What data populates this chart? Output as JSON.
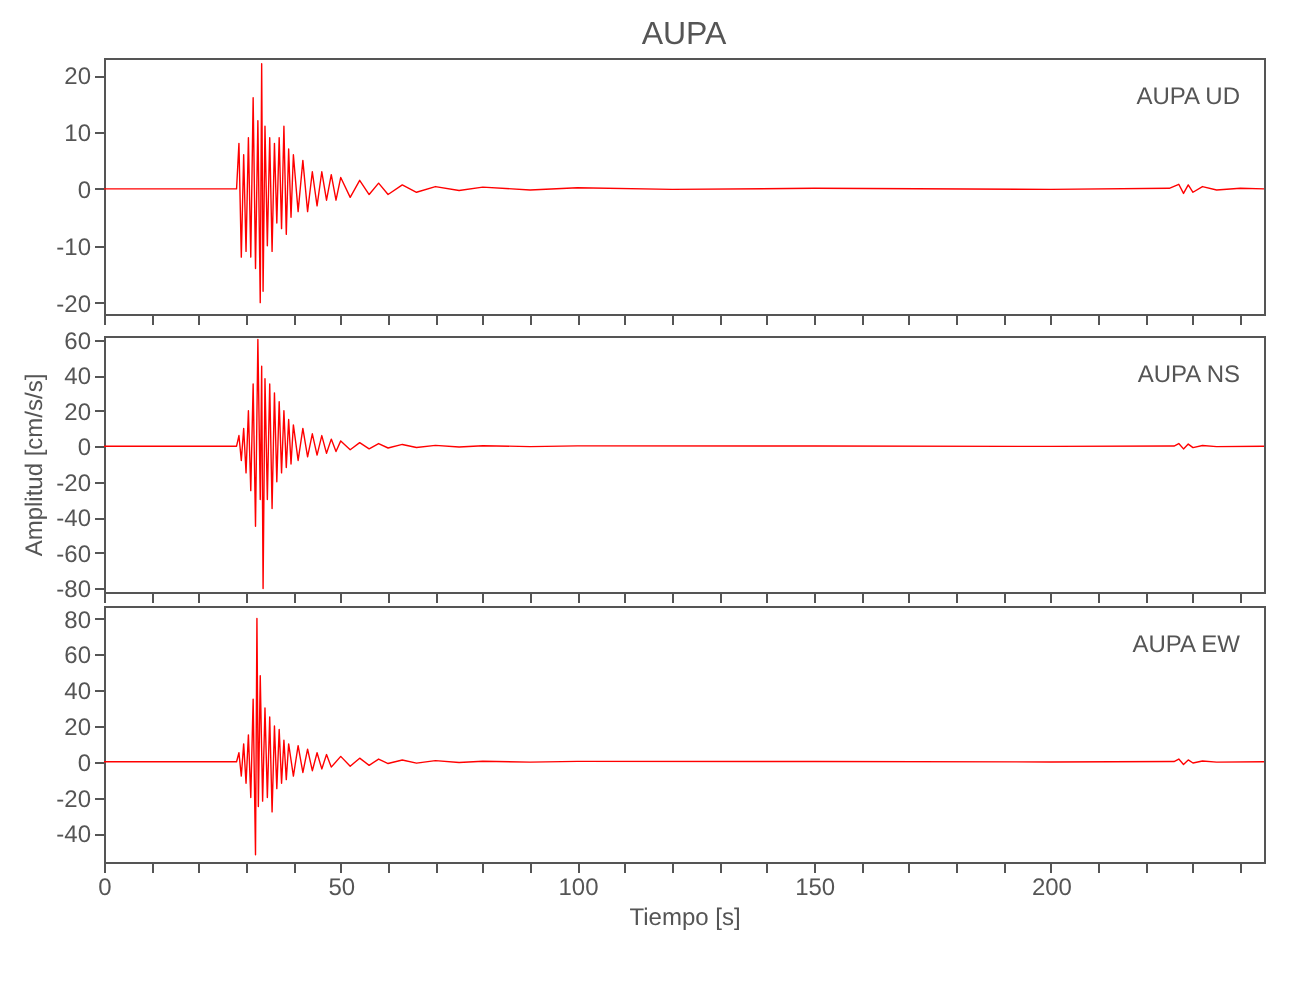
{
  "chart_data": [
    {
      "type": "line",
      "title": "AUPA",
      "annotations": [
        "AUPA  UD"
      ],
      "xlim": [
        0,
        245
      ],
      "ylim": [
        -22,
        23
      ],
      "xticks": [
        0,
        {
          "value": 10,
          "label": null
        },
        {
          "value": 20,
          "label": null
        },
        {
          "value": 30,
          "label": null
        },
        {
          "value": 40,
          "label": null
        },
        50,
        {
          "value": 60,
          "label": null
        },
        {
          "value": 70,
          "label": null
        },
        {
          "value": 80,
          "label": null
        },
        {
          "value": 90,
          "label": null
        },
        100,
        {
          "value": 110,
          "label": null
        },
        {
          "value": 120,
          "label": null
        },
        {
          "value": 130,
          "label": null
        },
        {
          "value": 140,
          "label": null
        },
        150,
        {
          "value": 160,
          "label": null
        },
        {
          "value": 170,
          "label": null
        },
        {
          "value": 180,
          "label": null
        },
        {
          "value": 190,
          "label": null
        },
        200,
        {
          "value": 210,
          "label": null
        },
        {
          "value": 220,
          "label": null
        },
        {
          "value": 230,
          "label": null
        },
        {
          "value": 240,
          "label": null
        }
      ],
      "yticks": [
        -20,
        -10,
        0,
        10,
        20
      ],
      "tick_labels": "y",
      "series": [
        {
          "color": "#ff0000",
          "x": [
            0,
            28,
            28.5,
            29,
            29.5,
            30,
            30.5,
            31,
            31.5,
            32,
            32.5,
            33,
            33.3,
            33.6,
            34,
            34.5,
            35,
            35.5,
            36,
            36.5,
            37,
            37.5,
            38,
            38.5,
            39,
            39.5,
            40,
            41,
            42,
            43,
            44,
            45,
            46,
            47,
            48,
            49,
            50,
            52,
            54,
            56,
            58,
            60,
            63,
            66,
            70,
            75,
            80,
            90,
            100,
            120,
            150,
            200,
            225,
            227,
            228,
            229,
            230,
            232,
            235,
            240,
            245
          ],
          "values": [
            0,
            0,
            8,
            -12,
            6,
            -11,
            9,
            -12,
            16,
            -14,
            12,
            -20,
            22,
            -18,
            11,
            -10,
            9,
            -11,
            8,
            -6,
            9,
            -7,
            11,
            -8,
            7,
            -5,
            6,
            -4,
            5,
            -4,
            3,
            -3,
            3,
            -2,
            2.5,
            -2,
            2,
            -1.5,
            1.5,
            -1,
            1,
            -1,
            0.7,
            -0.6,
            0.4,
            -0.3,
            0.3,
            -0.2,
            0.2,
            -0.1,
            0.1,
            -0.1,
            0.1,
            0.8,
            -0.8,
            0.7,
            -0.6,
            0.4,
            -0.2,
            0.1,
            0
          ]
        }
      ]
    },
    {
      "type": "line",
      "ylabel": "Amplitud [cm/s/s]",
      "annotations": [
        "AUPA  NS"
      ],
      "xlim": [
        0,
        245
      ],
      "ylim": [
        -82,
        62
      ],
      "xticks": [
        0,
        {
          "value": 10,
          "label": null
        },
        {
          "value": 20,
          "label": null
        },
        {
          "value": 30,
          "label": null
        },
        {
          "value": 40,
          "label": null
        },
        50,
        {
          "value": 60,
          "label": null
        },
        {
          "value": 70,
          "label": null
        },
        {
          "value": 80,
          "label": null
        },
        {
          "value": 90,
          "label": null
        },
        100,
        {
          "value": 110,
          "label": null
        },
        {
          "value": 120,
          "label": null
        },
        {
          "value": 130,
          "label": null
        },
        {
          "value": 140,
          "label": null
        },
        150,
        {
          "value": 160,
          "label": null
        },
        {
          "value": 170,
          "label": null
        },
        {
          "value": 180,
          "label": null
        },
        {
          "value": 190,
          "label": null
        },
        200,
        {
          "value": 210,
          "label": null
        },
        {
          "value": 220,
          "label": null
        },
        {
          "value": 230,
          "label": null
        },
        {
          "value": 240,
          "label": null
        }
      ],
      "yticks": [
        -80,
        -60,
        -40,
        -20,
        0,
        20,
        40,
        60
      ],
      "tick_labels": "y",
      "series": [
        {
          "color": "#ff0000",
          "x": [
            0,
            28,
            28.5,
            29,
            29.5,
            30,
            30.5,
            31,
            31.5,
            32,
            32.5,
            33,
            33.3,
            33.6,
            34,
            34.5,
            35,
            35.5,
            36,
            36.5,
            37,
            37.5,
            38,
            38.5,
            39,
            39.5,
            40,
            41,
            42,
            43,
            44,
            45,
            46,
            47,
            48,
            49,
            50,
            52,
            54,
            56,
            58,
            60,
            63,
            66,
            70,
            75,
            80,
            90,
            100,
            150,
            200,
            226,
            227,
            228,
            229,
            230,
            232,
            235,
            245
          ],
          "values": [
            0,
            0,
            6,
            -8,
            10,
            -15,
            20,
            -25,
            35,
            -45,
            60,
            -30,
            45,
            -80,
            38,
            -30,
            35,
            -35,
            30,
            -20,
            25,
            -15,
            20,
            -12,
            15,
            -10,
            12,
            -8,
            10,
            -6,
            7,
            -5,
            6,
            -4,
            4,
            -3,
            3,
            -2,
            2,
            -1.5,
            1.5,
            -1,
            1,
            -0.7,
            0.5,
            -0.4,
            0.3,
            -0.2,
            0.2,
            0.1,
            -0.1,
            0.1,
            1.5,
            -1.5,
            1.2,
            -0.8,
            0.4,
            -0.2,
            0
          ]
        }
      ]
    },
    {
      "type": "line",
      "xlabel": "Tiempo [s]",
      "annotations": [
        "AUPA  EW"
      ],
      "xlim": [
        0,
        245
      ],
      "ylim": [
        -56,
        87
      ],
      "xticks": [
        0,
        {
          "value": 10,
          "label": null
        },
        {
          "value": 20,
          "label": null
        },
        {
          "value": 30,
          "label": null
        },
        {
          "value": 40,
          "label": null
        },
        50,
        {
          "value": 60,
          "label": null
        },
        {
          "value": 70,
          "label": null
        },
        {
          "value": 80,
          "label": null
        },
        {
          "value": 90,
          "label": null
        },
        100,
        {
          "value": 110,
          "label": null
        },
        {
          "value": 120,
          "label": null
        },
        {
          "value": 130,
          "label": null
        },
        {
          "value": 140,
          "label": null
        },
        150,
        {
          "value": 160,
          "label": null
        },
        {
          "value": 170,
          "label": null
        },
        {
          "value": 180,
          "label": null
        },
        {
          "value": 190,
          "label": null
        },
        200,
        {
          "value": 210,
          "label": null
        },
        {
          "value": 220,
          "label": null
        },
        {
          "value": 230,
          "label": null
        },
        {
          "value": 240,
          "label": null
        }
      ],
      "yticks": [
        -40,
        -20,
        0,
        20,
        40,
        60,
        80
      ],
      "series": [
        {
          "color": "#ff0000",
          "x": [
            0,
            28,
            28.5,
            29,
            29.5,
            30,
            30.5,
            31,
            31.5,
            32,
            32.3,
            32.6,
            33,
            33.5,
            34,
            34.5,
            35,
            35.5,
            36,
            36.5,
            37,
            37.5,
            38,
            38.5,
            39,
            40,
            41,
            42,
            43,
            44,
            45,
            46,
            47,
            48,
            50,
            52,
            54,
            56,
            58,
            60,
            63,
            66,
            70,
            75,
            80,
            90,
            100,
            150,
            200,
            226,
            227,
            228,
            229,
            230,
            232,
            235,
            245
          ],
          "values": [
            0,
            0,
            5,
            -8,
            10,
            -12,
            15,
            -20,
            35,
            -52,
            80,
            -25,
            48,
            -22,
            30,
            -20,
            25,
            -28,
            20,
            -15,
            18,
            -12,
            12,
            -10,
            10,
            -8,
            9,
            -6,
            7,
            -5,
            5,
            -4,
            4,
            -3,
            3,
            -2.5,
            2,
            -2,
            1.5,
            -1,
            1,
            -0.8,
            0.6,
            -0.4,
            0.3,
            -0.2,
            0.2,
            0.1,
            -0.1,
            0.1,
            1.5,
            -1.5,
            1,
            -0.7,
            0.4,
            -0.2,
            0
          ]
        }
      ]
    }
  ]
}
